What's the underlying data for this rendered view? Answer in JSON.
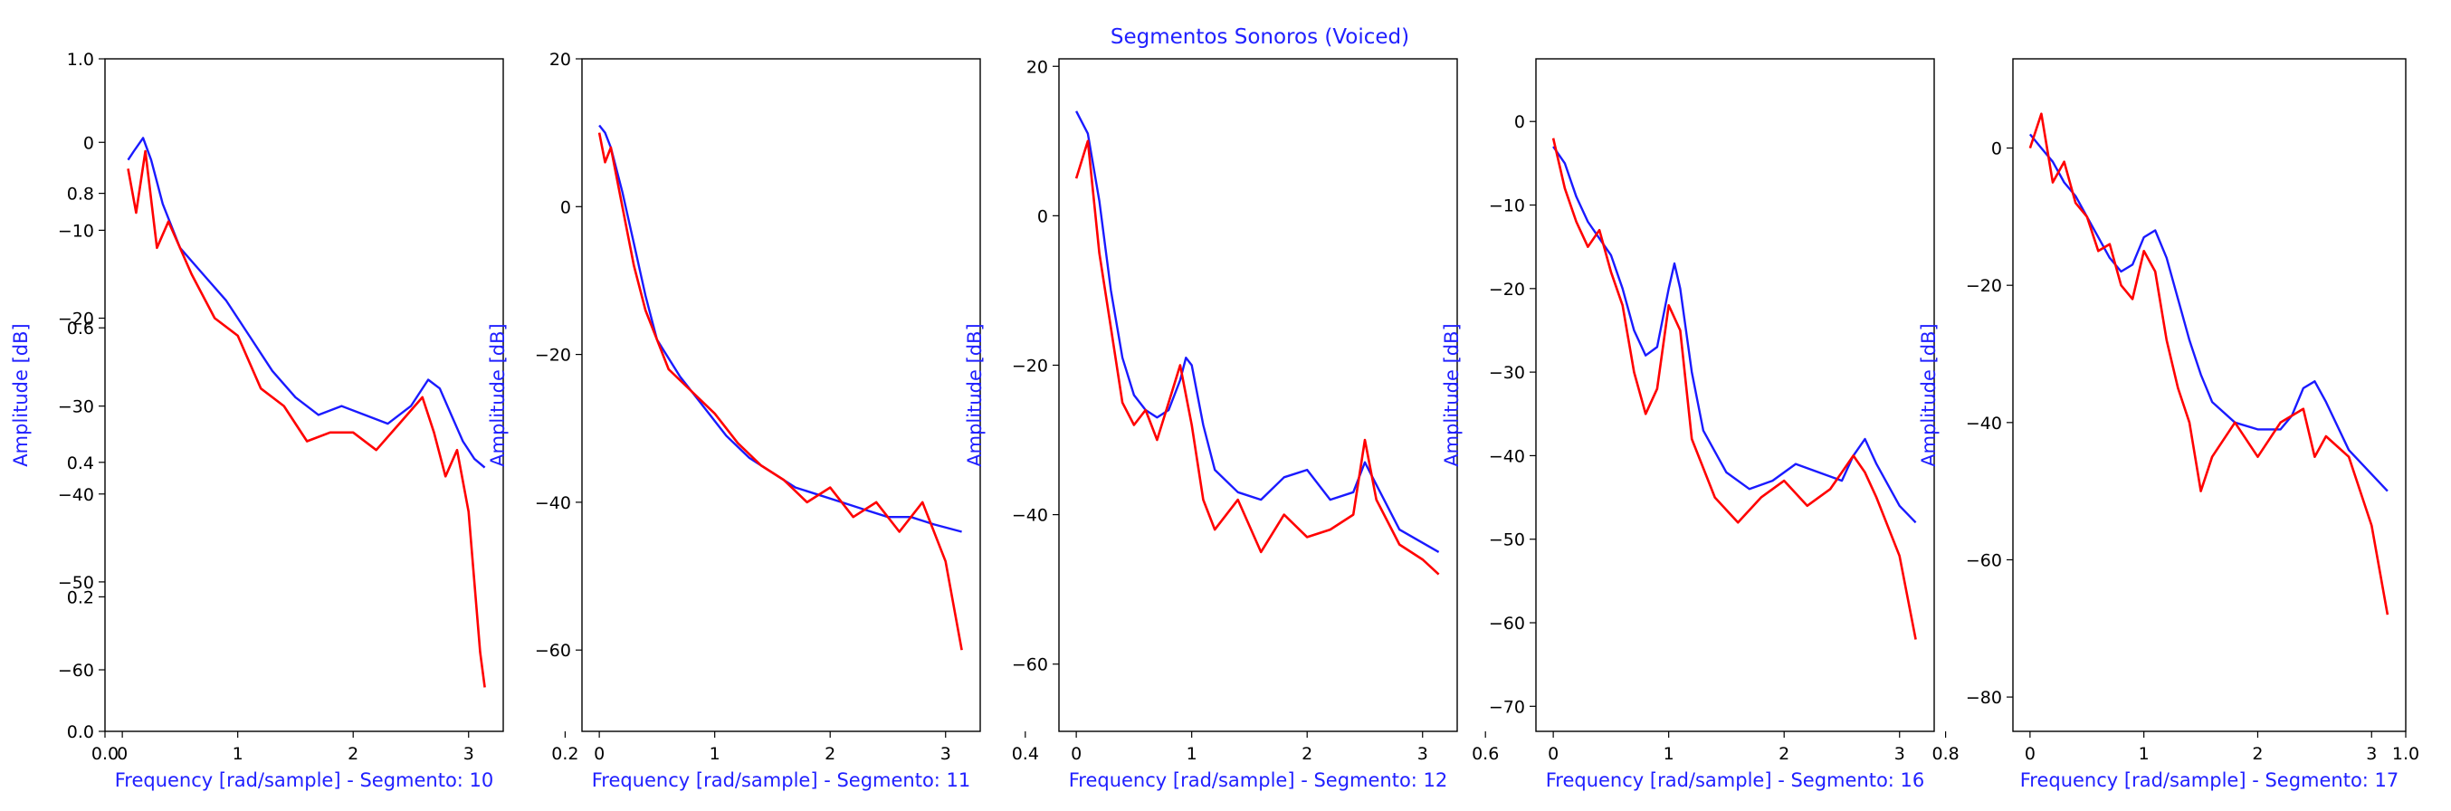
{
  "figure": {
    "title": "Segmentos Sonoros (Voiced)",
    "label_color": "#2020ff",
    "envelope_color": "#1a1aff",
    "spectrum_color": "#ff0000"
  },
  "chart_data": {
    "type": "line",
    "overlay_axis": {
      "xlim": [
        0.0,
        1.0
      ],
      "ylim": [
        0.0,
        1.0
      ],
      "xticks": [
        0.0,
        0.2,
        0.4,
        0.6,
        0.8,
        1.0
      ],
      "yticks": [
        0.0,
        0.2,
        0.4,
        0.6,
        0.8,
        1.0
      ],
      "xtick_labels": [
        "0.0",
        "0.2",
        "0.4",
        "0.6",
        "0.8",
        "1.0"
      ],
      "ytick_labels": [
        "0.0",
        "0.2",
        "0.4",
        "0.6",
        "0.8",
        "1.0"
      ]
    },
    "subplots": [
      {
        "xlabel": "Frequency [rad/sample] - Segmento: 10",
        "ylabel": "Amplitude [dB]",
        "xlim": [
          -0.15,
          3.3
        ],
        "ylim": [
          -67,
          9.5
        ],
        "xticks": [
          0,
          1,
          2,
          3
        ],
        "yticks": [
          0,
          -10,
          -20,
          -30,
          -40,
          -50,
          -60
        ],
        "xtick_labels": [
          "0",
          "1",
          "2",
          "3"
        ],
        "ytick_labels": [
          "0",
          "−10",
          "−20",
          "−30",
          "−40",
          "−50",
          "−60"
        ],
        "series": [
          {
            "role": "envelope",
            "x": [
              0.05,
              0.1,
              0.18,
              0.25,
              0.35,
              0.5,
              0.7,
              0.9,
              1.1,
              1.3,
              1.5,
              1.7,
              1.9,
              2.1,
              2.3,
              2.5,
              2.65,
              2.75,
              2.85,
              2.95,
              3.05,
              3.14
            ],
            "y": [
              -2,
              -1,
              0.5,
              -2,
              -7,
              -12,
              -15,
              -18,
              -22,
              -26,
              -29,
              -31,
              -30,
              -31,
              -32,
              -30,
              -27,
              -28,
              -31,
              -34,
              -36,
              -37
            ]
          },
          {
            "role": "spectrum",
            "x": [
              0.05,
              0.12,
              0.2,
              0.3,
              0.4,
              0.6,
              0.8,
              1.0,
              1.2,
              1.4,
              1.6,
              1.8,
              2.0,
              2.2,
              2.4,
              2.6,
              2.7,
              2.8,
              2.9,
              3.0,
              3.1,
              3.14
            ],
            "y": [
              -3,
              -8,
              -1,
              -12,
              -9,
              -15,
              -20,
              -22,
              -28,
              -30,
              -34,
              -33,
              -33,
              -35,
              -32,
              -29,
              -33,
              -38,
              -35,
              -42,
              -58,
              -62
            ]
          }
        ]
      },
      {
        "xlabel": "Frequency [rad/sample] - Segmento: 11",
        "ylabel": "Amplitude [dB]",
        "xlim": [
          -0.15,
          3.3
        ],
        "ylim": [
          -71,
          20
        ],
        "xticks": [
          0,
          1,
          2,
          3
        ],
        "yticks": [
          20,
          0,
          -20,
          -40,
          -60
        ],
        "xtick_labels": [
          "0",
          "1",
          "2",
          "3"
        ],
        "ytick_labels": [
          "20",
          "0",
          "−20",
          "−40",
          "−60"
        ],
        "series": [
          {
            "role": "envelope",
            "x": [
              0.0,
              0.05,
              0.1,
              0.2,
              0.3,
              0.4,
              0.5,
              0.7,
              0.9,
              1.1,
              1.3,
              1.5,
              1.7,
              1.9,
              2.1,
              2.3,
              2.5,
              2.7,
              2.9,
              3.14
            ],
            "y": [
              11,
              10,
              8,
              2,
              -5,
              -12,
              -18,
              -23,
              -27,
              -31,
              -34,
              -36,
              -38,
              -39,
              -40,
              -41,
              -42,
              -42,
              -43,
              -44
            ]
          },
          {
            "role": "spectrum",
            "x": [
              0.0,
              0.05,
              0.1,
              0.2,
              0.3,
              0.4,
              0.6,
              0.8,
              1.0,
              1.2,
              1.4,
              1.6,
              1.8,
              2.0,
              2.2,
              2.4,
              2.6,
              2.8,
              3.0,
              3.14
            ],
            "y": [
              10,
              6,
              8,
              0,
              -8,
              -14,
              -22,
              -25,
              -28,
              -32,
              -35,
              -37,
              -40,
              -38,
              -42,
              -40,
              -44,
              -40,
              -48,
              -60
            ]
          }
        ]
      },
      {
        "xlabel": "Frequency [rad/sample] - Segmento: 12",
        "ylabel": "Amplitude [dB]",
        "xlim": [
          -0.15,
          3.3
        ],
        "ylim": [
          -69,
          21
        ],
        "xticks": [
          0,
          1,
          2,
          3
        ],
        "yticks": [
          20,
          0,
          -20,
          -40,
          -60
        ],
        "xtick_labels": [
          "0",
          "1",
          "2",
          "3"
        ],
        "ytick_labels": [
          "20",
          "0",
          "−20",
          "−40",
          "−60"
        ],
        "series": [
          {
            "role": "envelope",
            "x": [
              0.0,
              0.1,
              0.2,
              0.3,
              0.4,
              0.5,
              0.6,
              0.7,
              0.8,
              0.9,
              0.95,
              1.0,
              1.1,
              1.2,
              1.4,
              1.6,
              1.8,
              2.0,
              2.2,
              2.4,
              2.5,
              2.6,
              2.8,
              3.14
            ],
            "y": [
              14,
              11,
              2,
              -10,
              -19,
              -24,
              -26,
              -27,
              -26,
              -22,
              -19,
              -20,
              -28,
              -34,
              -37,
              -38,
              -35,
              -34,
              -38,
              -37,
              -33,
              -36,
              -42,
              -45
            ]
          },
          {
            "role": "spectrum",
            "x": [
              0.0,
              0.1,
              0.2,
              0.3,
              0.4,
              0.5,
              0.6,
              0.7,
              0.8,
              0.9,
              1.0,
              1.1,
              1.2,
              1.4,
              1.6,
              1.8,
              2.0,
              2.2,
              2.4,
              2.5,
              2.6,
              2.8,
              3.0,
              3.14
            ],
            "y": [
              5,
              10,
              -5,
              -15,
              -25,
              -28,
              -26,
              -30,
              -25,
              -20,
              -28,
              -38,
              -42,
              -38,
              -45,
              -40,
              -43,
              -42,
              -40,
              -30,
              -38,
              -44,
              -46,
              -48
            ]
          }
        ]
      },
      {
        "xlabel": "Frequency [rad/sample] - Segmento: 16",
        "ylabel": "Amplitude [dB]",
        "xlim": [
          -0.15,
          3.3
        ],
        "ylim": [
          -73,
          7.5
        ],
        "xticks": [
          0,
          1,
          2,
          3
        ],
        "yticks": [
          0,
          -10,
          -20,
          -30,
          -40,
          -50,
          -60,
          -70
        ],
        "xtick_labels": [
          "0",
          "1",
          "2",
          "3"
        ],
        "ytick_labels": [
          "0",
          "−10",
          "−20",
          "−30",
          "−40",
          "−50",
          "−60",
          "−70"
        ],
        "series": [
          {
            "role": "envelope",
            "x": [
              0.0,
              0.1,
              0.2,
              0.3,
              0.4,
              0.5,
              0.6,
              0.7,
              0.8,
              0.9,
              1.0,
              1.05,
              1.1,
              1.2,
              1.3,
              1.5,
              1.7,
              1.9,
              2.1,
              2.3,
              2.5,
              2.6,
              2.7,
              2.8,
              3.0,
              3.14
            ],
            "y": [
              -3,
              -5,
              -9,
              -12,
              -14,
              -16,
              -20,
              -25,
              -28,
              -27,
              -20,
              -17,
              -20,
              -30,
              -37,
              -42,
              -44,
              -43,
              -41,
              -42,
              -43,
              -40,
              -38,
              -41,
              -46,
              -48
            ]
          },
          {
            "role": "spectrum",
            "x": [
              0.0,
              0.1,
              0.2,
              0.3,
              0.4,
              0.5,
              0.6,
              0.7,
              0.8,
              0.9,
              1.0,
              1.1,
              1.2,
              1.4,
              1.6,
              1.8,
              2.0,
              2.2,
              2.4,
              2.6,
              2.7,
              2.8,
              3.0,
              3.14
            ],
            "y": [
              -2,
              -8,
              -12,
              -15,
              -13,
              -18,
              -22,
              -30,
              -35,
              -32,
              -22,
              -25,
              -38,
              -45,
              -48,
              -45,
              -43,
              -46,
              -44,
              -40,
              -42,
              -45,
              -52,
              -62
            ]
          }
        ]
      },
      {
        "xlabel": "Frequency [rad/sample] - Segmento: 17",
        "ylabel": "Amplitude [dB]",
        "xlim": [
          -0.15,
          3.3
        ],
        "ylim": [
          -85,
          13
        ],
        "xticks": [
          0,
          1,
          2,
          3
        ],
        "yticks": [
          0,
          -20,
          -40,
          -60,
          -80
        ],
        "xtick_labels": [
          "0",
          "1",
          "2",
          "3"
        ],
        "ytick_labels": [
          "0",
          "−20",
          "−40",
          "−60",
          "−80"
        ],
        "series": [
          {
            "role": "envelope",
            "x": [
              0.0,
              0.1,
              0.2,
              0.3,
              0.4,
              0.5,
              0.6,
              0.7,
              0.8,
              0.9,
              1.0,
              1.1,
              1.2,
              1.3,
              1.4,
              1.5,
              1.6,
              1.8,
              2.0,
              2.2,
              2.3,
              2.4,
              2.5,
              2.6,
              2.8,
              3.14
            ],
            "y": [
              2,
              0,
              -2,
              -5,
              -7,
              -10,
              -13,
              -16,
              -18,
              -17,
              -13,
              -12,
              -16,
              -22,
              -28,
              -33,
              -37,
              -40,
              -41,
              -41,
              -39,
              -35,
              -34,
              -37,
              -44,
              -50
            ]
          },
          {
            "role": "spectrum",
            "x": [
              0.0,
              0.1,
              0.2,
              0.3,
              0.4,
              0.5,
              0.6,
              0.7,
              0.8,
              0.9,
              1.0,
              1.1,
              1.2,
              1.3,
              1.4,
              1.5,
              1.6,
              1.8,
              2.0,
              2.2,
              2.4,
              2.5,
              2.6,
              2.8,
              3.0,
              3.14
            ],
            "y": [
              0,
              5,
              -5,
              -2,
              -8,
              -10,
              -15,
              -14,
              -20,
              -22,
              -15,
              -18,
              -28,
              -35,
              -40,
              -50,
              -45,
              -40,
              -45,
              -40,
              -38,
              -45,
              -42,
              -45,
              -55,
              -68
            ]
          }
        ]
      }
    ]
  }
}
